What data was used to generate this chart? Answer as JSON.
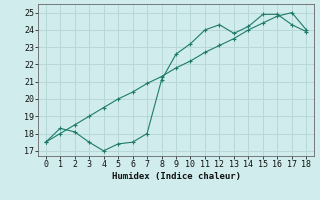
{
  "xlabel": "Humidex (Indice chaleur)",
  "ylabel": "",
  "bg_color": "#d0ecec",
  "grid_color": "#b8d8d8",
  "line_color": "#1e7b6a",
  "xlim": [
    -0.5,
    18.5
  ],
  "ylim": [
    16.7,
    25.5
  ],
  "xticks": [
    0,
    1,
    2,
    3,
    4,
    5,
    6,
    7,
    8,
    9,
    10,
    11,
    12,
    13,
    14,
    15,
    16,
    17,
    18
  ],
  "yticks": [
    17,
    18,
    19,
    20,
    21,
    22,
    23,
    24,
    25
  ],
  "line1_x": [
    0,
    1,
    2,
    3,
    4,
    5,
    6,
    7,
    8,
    9,
    10,
    11,
    12,
    13,
    14,
    15,
    16,
    17,
    18
  ],
  "line1_y": [
    17.5,
    18.0,
    18.5,
    19.0,
    19.5,
    20.0,
    20.4,
    20.9,
    21.3,
    21.8,
    22.2,
    22.7,
    23.1,
    23.5,
    24.0,
    24.4,
    24.8,
    25.0,
    24.0
  ],
  "line2_x": [
    0,
    1,
    2,
    3,
    4,
    5,
    6,
    7,
    8,
    9,
    10,
    11,
    12,
    13,
    14,
    15,
    16,
    17,
    18
  ],
  "line2_y": [
    17.5,
    18.3,
    18.1,
    17.5,
    17.0,
    17.4,
    17.5,
    18.0,
    21.1,
    22.6,
    23.2,
    24.0,
    24.3,
    23.8,
    24.2,
    24.9,
    24.9,
    24.3,
    23.9
  ]
}
